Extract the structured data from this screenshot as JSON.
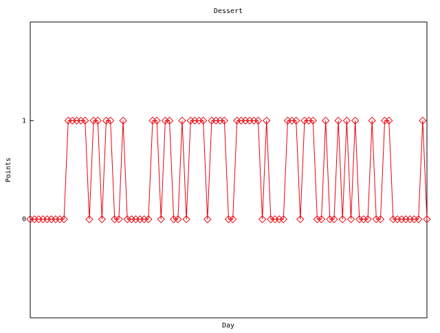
{
  "chart_data": {
    "type": "line",
    "title": "Dessert",
    "x_label": "Day",
    "y_label": "Points",
    "color": "#e8000b",
    "marker": "diamond",
    "values": [
      0,
      0,
      0,
      0,
      0,
      0,
      0,
      0,
      0,
      1,
      1,
      1,
      1,
      1,
      0,
      1,
      1,
      0,
      1,
      1,
      0,
      0,
      1,
      0,
      0,
      0,
      0,
      0,
      0,
      1,
      1,
      0,
      1,
      1,
      0,
      0,
      1,
      0,
      1,
      1,
      1,
      1,
      0,
      1,
      1,
      1,
      1,
      0,
      0,
      1,
      1,
      1,
      1,
      1,
      1,
      0,
      1,
      0,
      0,
      0,
      0,
      1,
      1,
      1,
      0,
      1,
      1,
      1,
      0,
      0,
      1,
      0,
      0,
      1,
      0,
      1,
      0,
      1,
      0,
      0,
      0,
      1,
      0,
      0,
      1,
      1,
      0,
      0,
      0,
      0,
      0,
      0,
      0,
      1,
      0
    ],
    "ylim": [
      -1,
      2
    ],
    "yticks": [
      0,
      1
    ]
  }
}
